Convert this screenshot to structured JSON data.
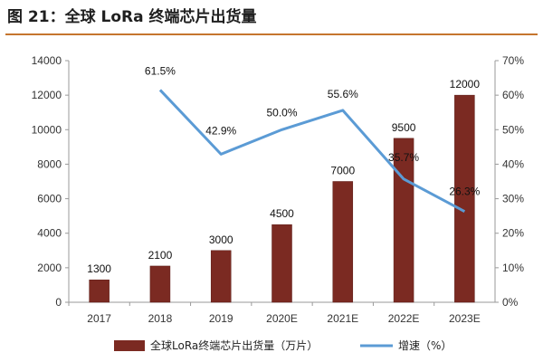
{
  "header": {
    "title": "图 21：全球 LoRa 终端芯片出货量",
    "accent_color": "#c5752f"
  },
  "chart_data": {
    "type": "bar",
    "categories": [
      "2017",
      "2018",
      "2019",
      "2020E",
      "2021E",
      "2022E",
      "2023E"
    ],
    "series": [
      {
        "name": "全球LoRa终端芯片出货量（万片）",
        "type": "bar",
        "axis": "left",
        "color": "#7b2a22",
        "values": [
          1300,
          2100,
          3000,
          4500,
          7000,
          9500,
          12000
        ],
        "labels": [
          "1300",
          "2100",
          "3000",
          "4500",
          "7000",
          "9500",
          "12000"
        ]
      },
      {
        "name": "增速（%）",
        "type": "line",
        "axis": "right",
        "color": "#5b9bd5",
        "values": [
          null,
          61.5,
          42.9,
          50.0,
          55.6,
          35.7,
          26.3
        ],
        "labels": [
          null,
          "61.5%",
          "42.9%",
          "50.0%",
          "55.6%",
          "35.7%",
          "26.3%"
        ]
      }
    ],
    "y_left": {
      "ylim": [
        0,
        14000
      ],
      "ticks": [
        0,
        2000,
        4000,
        6000,
        8000,
        10000,
        12000,
        14000
      ],
      "tick_labels": [
        "0",
        "2000",
        "4000",
        "6000",
        "8000",
        "10000",
        "12000",
        "14000"
      ]
    },
    "y_right": {
      "ylim": [
        0,
        70
      ],
      "ticks": [
        0,
        10,
        20,
        30,
        40,
        50,
        60,
        70
      ],
      "tick_labels": [
        "0%",
        "10%",
        "20%",
        "30%",
        "40%",
        "50%",
        "60%",
        "70%"
      ]
    },
    "grid": false,
    "legend_position": "bottom"
  }
}
